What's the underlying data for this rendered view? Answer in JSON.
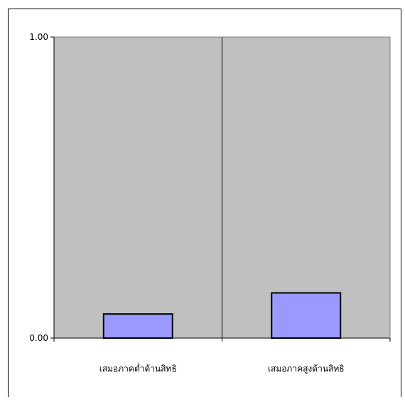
{
  "chart_data": {
    "type": "bar",
    "categories": [
      "เสมอภาคต่ำด้านสิทธิ",
      "เสมอภาคสูงด้านสิทธิ"
    ],
    "values": [
      0.08,
      0.15
    ],
    "ylim": [
      0,
      1
    ],
    "y_ticks": [
      "0.00",
      "1.00"
    ],
    "title": "",
    "xlabel": "",
    "ylabel": "",
    "grid": false,
    "legend": "none",
    "colors": {
      "plot_area": "#c0c0c0",
      "bar_fill": "#9999ff",
      "bar_stroke": "#000000",
      "axis": "#000000",
      "page": "#ffffff"
    }
  }
}
